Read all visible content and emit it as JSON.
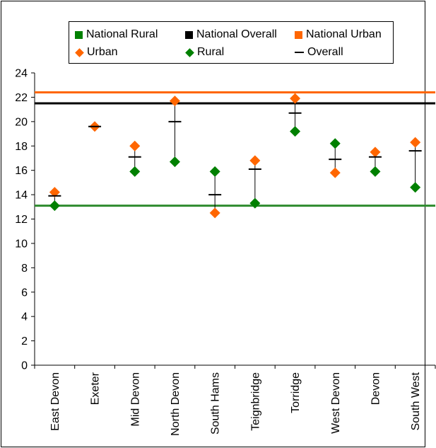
{
  "chart_data": {
    "type": "scatter",
    "categories": [
      "East Devon",
      "Exeter",
      "Mid Devon",
      "North Devon",
      "South Hams",
      "Teignbridge",
      "Torridge",
      "West Devon",
      "Devon",
      "South West"
    ],
    "series": [
      {
        "name": "Urban",
        "marker": "diamond",
        "color": "#ff6600",
        "values": [
          14.2,
          19.6,
          18.0,
          21.7,
          12.5,
          16.8,
          21.9,
          15.8,
          17.5,
          18.3
        ]
      },
      {
        "name": "Rural",
        "marker": "diamond",
        "color": "#008000",
        "values": [
          13.1,
          null,
          15.9,
          16.7,
          15.9,
          13.3,
          19.2,
          18.2,
          15.9,
          14.6
        ]
      },
      {
        "name": "Overall",
        "marker": "dash",
        "color": "#000000",
        "values": [
          13.9,
          19.6,
          17.1,
          20.0,
          14.0,
          16.1,
          20.7,
          16.9,
          17.1,
          17.6
        ]
      }
    ],
    "reference_lines": [
      {
        "name": "National Rural",
        "value": 13.1,
        "color": "#2e8b2e"
      },
      {
        "name": "National Overall",
        "value": 21.5,
        "color": "#000000"
      },
      {
        "name": "National Urban",
        "value": 22.4,
        "color": "#ff6600"
      }
    ],
    "ylim": [
      0,
      24
    ],
    "yticks": [
      0,
      2,
      4,
      6,
      8,
      10,
      12,
      14,
      16,
      18,
      20,
      22,
      24
    ],
    "grid": false,
    "legend_position": "top"
  },
  "legend": {
    "items": [
      {
        "label": "National Rural",
        "kind": "square",
        "color": "#008000"
      },
      {
        "label": "National Overall",
        "kind": "square",
        "color": "#000000"
      },
      {
        "label": "National Urban",
        "kind": "square",
        "color": "#ff6600"
      },
      {
        "label": "Urban",
        "kind": "diamond",
        "color": "#ff6600"
      },
      {
        "label": "Rural",
        "kind": "diamond",
        "color": "#008000"
      },
      {
        "label": "Overall",
        "kind": "dash",
        "color": "#000000"
      }
    ]
  }
}
